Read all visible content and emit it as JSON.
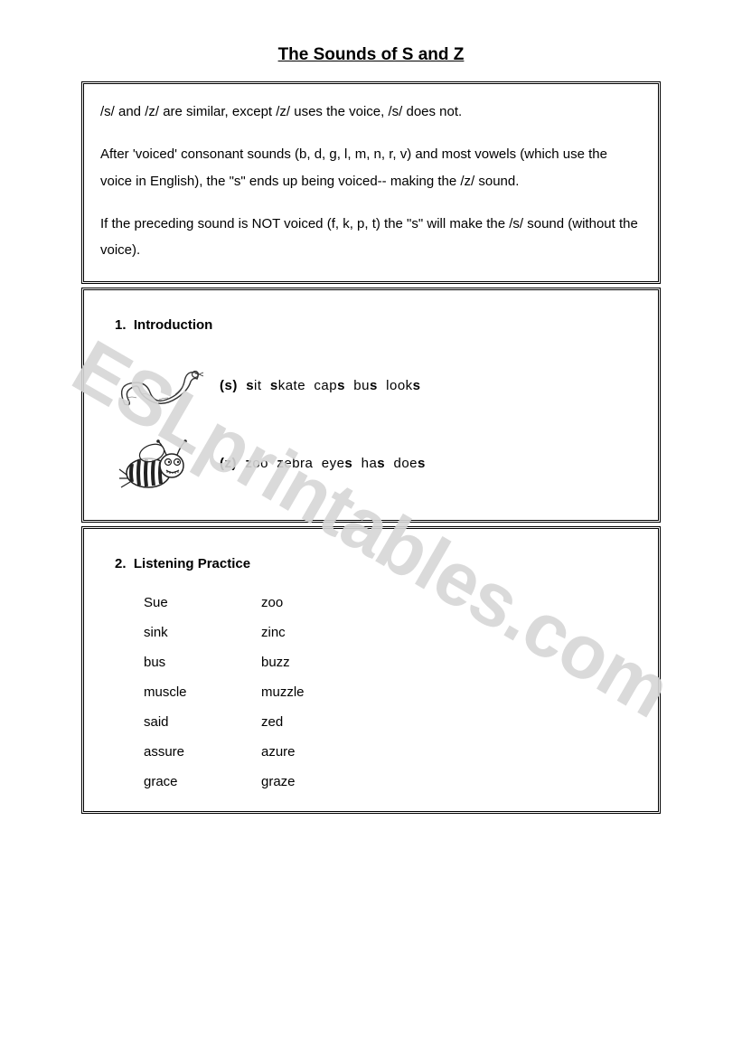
{
  "title": "The Sounds of S and Z",
  "watermark": "ESLprintables.com",
  "explain": {
    "p1": "/s/ and /z/ are similar, except /z/ uses the voice, /s/ does not.",
    "p2": "After 'voiced' consonant sounds (b, d, g, l, m, n, r, v) and most vowels (which use the voice in English), the \"s\" ends up being voiced-- making the /z/ sound.",
    "p3": "If the preceding sound is NOT voiced (f, k, p, t) the \"s\" will make the /s/ sound (without the voice)."
  },
  "section1": {
    "number": "1.",
    "heading": "Introduction",
    "row_s": {
      "label": "(s)",
      "words_html": "<b>s</b>it&nbsp; <b>s</b>kate&nbsp; cap<b>s</b>&nbsp; bu<b>s</b>&nbsp; look<b>s</b>"
    },
    "row_z": {
      "label": "(z)",
      "words_html": "<b>z</b>oo&nbsp; <b>z</b>ebra&nbsp; eye<b>s</b>&nbsp; ha<b>s</b>&nbsp; doe<b>s</b>"
    }
  },
  "section2": {
    "number": "2.",
    "heading": "Listening Practice",
    "pairs": [
      {
        "a": "Sue",
        "b": "zoo"
      },
      {
        "a": "sink",
        "b": "zinc"
      },
      {
        "a": "bus",
        "b": "buzz"
      },
      {
        "a": "muscle",
        "b": "muzzle"
      },
      {
        "a": "said",
        "b": "zed"
      },
      {
        "a": "assure",
        "b": "azure"
      },
      {
        "a": "grace",
        "b": "graze"
      }
    ]
  },
  "colors": {
    "text": "#000000",
    "background": "#ffffff",
    "border": "#000000",
    "watermark": "#d6d6d6"
  },
  "fonts": {
    "body_family": "Verdana",
    "body_size_pt": 11,
    "title_size_pt": 14,
    "watermark_size_pt": 63
  }
}
